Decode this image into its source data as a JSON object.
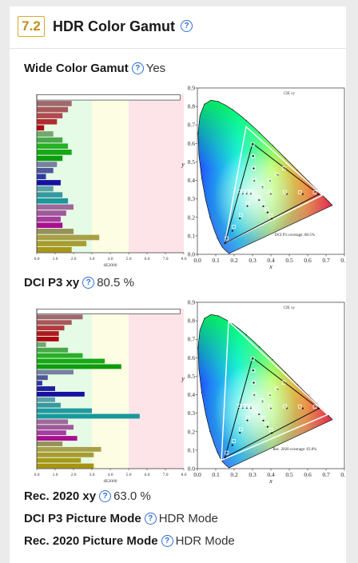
{
  "section": {
    "number": "7.2",
    "title": "HDR Color Gamut"
  },
  "rows": [
    {
      "label": "Wide Color Gamut",
      "value": "Yes"
    },
    {
      "label": "DCI P3 xy",
      "value": "80.5 %"
    },
    {
      "label": "Rec. 2020 xy",
      "value": "63.0 %"
    },
    {
      "label": "DCI P3 Picture Mode",
      "value": "HDR Mode"
    },
    {
      "label": "Rec. 2020 Picture Mode",
      "value": "HDR Mode"
    }
  ],
  "chart_data": [
    {
      "type": "bar",
      "xlabel": "dE2000",
      "xticks": [
        "0.0",
        "1.0",
        "2.0",
        "3.0",
        "4.0",
        "5.0",
        "6.0",
        "7.0",
        "8.0"
      ],
      "xlim": [
        0,
        8
      ],
      "zones": [
        {
          "from": 0,
          "to": 3,
          "color": "#e6fbe6"
        },
        {
          "from": 3,
          "to": 5,
          "color": "#fdfde4"
        },
        {
          "from": 5,
          "to": 8,
          "color": "#fde4e8"
        }
      ],
      "bars": [
        {
          "value": 7.8,
          "color": "#ffffff"
        },
        {
          "value": 1.9,
          "color": "#a0686e"
        },
        {
          "value": 1.7,
          "color": "#a8585c"
        },
        {
          "value": 1.4,
          "color": "#b04a50"
        },
        {
          "value": 1.1,
          "color": "#b02a30"
        },
        {
          "value": 0.4,
          "color": "#b00810"
        },
        {
          "value": 0.9,
          "color": "#70a870"
        },
        {
          "value": 1.4,
          "color": "#4aa84a"
        },
        {
          "value": 1.7,
          "color": "#26b026"
        },
        {
          "value": 1.9,
          "color": "#16a816"
        },
        {
          "value": 1.4,
          "color": "#0c9c0c"
        },
        {
          "value": 1.1,
          "color": "#7880a0"
        },
        {
          "value": 0.9,
          "color": "#505898"
        },
        {
          "value": 0.5,
          "color": "#3038a8"
        },
        {
          "value": 1.3,
          "color": "#1810a0"
        },
        {
          "value": 0.9,
          "color": "#5aa0a8"
        },
        {
          "value": 1.4,
          "color": "#3898a0"
        },
        {
          "value": 1.7,
          "color": "#18989c"
        },
        {
          "value": 2.0,
          "color": "#a0689c"
        },
        {
          "value": 1.6,
          "color": "#a0589c"
        },
        {
          "value": 1.3,
          "color": "#a83aa0"
        },
        {
          "value": 1.4,
          "color": "#a81090"
        },
        {
          "value": 2.0,
          "color": "#98905a"
        },
        {
          "value": 3.4,
          "color": "#a8a048"
        },
        {
          "value": 2.7,
          "color": "#a89c30"
        },
        {
          "value": 1.9,
          "color": "#a89818"
        }
      ]
    },
    {
      "type": "scatter",
      "title": "CIE xy",
      "xlabel": "x",
      "ylabel": "y",
      "xticks": [
        "0.0",
        "0.1",
        "0.2",
        "0.3",
        "0.4",
        "0.5",
        "0.6",
        "0.7",
        "0.8"
      ],
      "yticks": [
        "0.0",
        "0.1",
        "0.2",
        "0.3",
        "0.4",
        "0.5",
        "0.6",
        "0.7",
        "0.8",
        "0.9"
      ],
      "xlim": [
        0,
        0.8
      ],
      "ylim": [
        0,
        0.9
      ],
      "target_gamut": [
        [
          0.68,
          0.32
        ],
        [
          0.265,
          0.69
        ],
        [
          0.15,
          0.06
        ]
      ],
      "measured_gamut": [
        [
          0.66,
          0.325
        ],
        [
          0.3,
          0.6
        ],
        [
          0.15,
          0.06
        ]
      ],
      "white_point": [
        0.3127,
        0.329
      ],
      "annotation": "DCI P3 coverage: 80.5%"
    },
    {
      "type": "bar",
      "xlabel": "dE2000",
      "xticks": [
        "0.0",
        "1.0",
        "2.0",
        "3.0",
        "4.0",
        "5.0",
        "6.0",
        "7.0",
        "8.0"
      ],
      "xlim": [
        0,
        8
      ],
      "zones": [
        {
          "from": 0,
          "to": 3,
          "color": "#e6fbe6"
        },
        {
          "from": 3,
          "to": 5,
          "color": "#fdfde4"
        },
        {
          "from": 5,
          "to": 8,
          "color": "#fde4e8"
        }
      ],
      "bars": [
        {
          "value": 7.8,
          "color": "#ffffff"
        },
        {
          "value": 2.5,
          "color": "#a0686e"
        },
        {
          "value": 1.9,
          "color": "#a8585c"
        },
        {
          "value": 1.5,
          "color": "#b03a40"
        },
        {
          "value": 1.2,
          "color": "#b01820"
        },
        {
          "value": 1.2,
          "color": "#b00810"
        },
        {
          "value": 0.5,
          "color": "#70a870"
        },
        {
          "value": 1.7,
          "color": "#4aa84a"
        },
        {
          "value": 2.5,
          "color": "#26b026"
        },
        {
          "value": 3.7,
          "color": "#16a816"
        },
        {
          "value": 4.6,
          "color": "#0c9c0c"
        },
        {
          "value": 2.0,
          "color": "#7880a0"
        },
        {
          "value": 0.6,
          "color": "#505898"
        },
        {
          "value": 0.3,
          "color": "#3038a8"
        },
        {
          "value": 1.0,
          "color": "#2020a0"
        },
        {
          "value": 2.6,
          "color": "#1810a0"
        },
        {
          "value": 1.0,
          "color": "#5aa0a8"
        },
        {
          "value": 1.3,
          "color": "#3898a0"
        },
        {
          "value": 3.0,
          "color": "#2098a0"
        },
        {
          "value": 5.6,
          "color": "#18989c"
        },
        {
          "value": 1.7,
          "color": "#a0689c"
        },
        {
          "value": 2.0,
          "color": "#a0589c"
        },
        {
          "value": 1.6,
          "color": "#a83aa0"
        },
        {
          "value": 2.2,
          "color": "#a81090"
        },
        {
          "value": 1.4,
          "color": "#98905a"
        },
        {
          "value": 3.5,
          "color": "#a8a048"
        },
        {
          "value": 3.1,
          "color": "#a89c30"
        },
        {
          "value": 2.4,
          "color": "#a89818"
        },
        {
          "value": 3.1,
          "color": "#a89410"
        }
      ]
    },
    {
      "type": "scatter",
      "title": "CIE xy",
      "xlabel": "x",
      "ylabel": "y",
      "xticks": [
        "0.0",
        "0.1",
        "0.2",
        "0.3",
        "0.4",
        "0.5",
        "0.6",
        "0.7",
        "0.8"
      ],
      "yticks": [
        "0.0",
        "0.1",
        "0.2",
        "0.3",
        "0.4",
        "0.5",
        "0.6",
        "0.7",
        "0.8",
        "0.9"
      ],
      "xlim": [
        0,
        0.8
      ],
      "ylim": [
        0,
        0.9
      ],
      "target_gamut": [
        [
          0.708,
          0.292
        ],
        [
          0.17,
          0.797
        ],
        [
          0.131,
          0.046
        ]
      ],
      "measured_gamut": [
        [
          0.66,
          0.325
        ],
        [
          0.3,
          0.6
        ],
        [
          0.15,
          0.06
        ]
      ],
      "white_point": [
        0.3127,
        0.329
      ],
      "annotation": "Rec. 2020 coverage: 63.0%"
    }
  ]
}
